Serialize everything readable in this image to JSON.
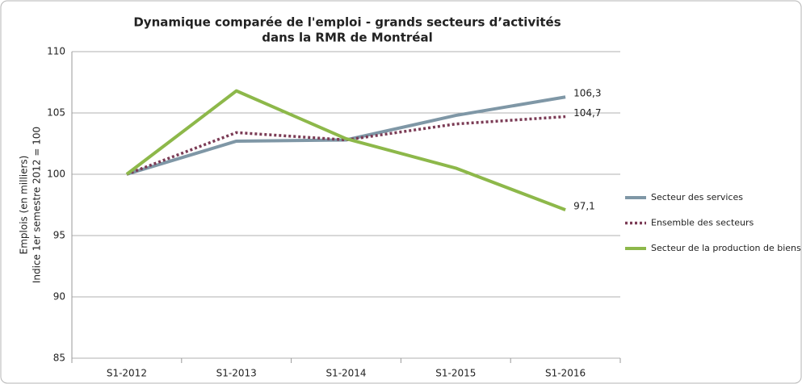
{
  "chart_data": {
    "type": "line",
    "title": [
      "Dynamique comparée de l'emploi - grands secteurs d’activités",
      "dans la RMR de Montréal"
    ],
    "y_label": [
      "Emplois (en milliers)",
      "Indice 1er semestre 2012 = 100"
    ],
    "categories": [
      "S1-2012",
      "S1-2013",
      "S1-2014",
      "S1-2015",
      "S1-2016"
    ],
    "series": [
      {
        "name": "Secteur des services",
        "color": "#7f97a6",
        "dashed": false,
        "values": [
          100,
          102.7,
          102.8,
          104.8,
          106.3
        ],
        "value_labels": [
          null,
          null,
          null,
          null,
          "106,3"
        ]
      },
      {
        "name": "Ensemble des secteurs",
        "color": "#7b3b55",
        "dashed": true,
        "values": [
          100,
          103.4,
          102.8,
          104.1,
          104.7
        ],
        "value_labels": [
          null,
          null,
          null,
          null,
          "104,7"
        ]
      },
      {
        "name": "Secteur de la production de biens",
        "color": "#8db84a",
        "dashed": false,
        "values": [
          100,
          106.8,
          102.9,
          100.5,
          97.1
        ],
        "value_labels": [
          null,
          null,
          null,
          null,
          "97,1"
        ]
      }
    ],
    "ylim": [
      85,
      110
    ],
    "yticks": [
      85,
      90,
      95,
      100,
      105,
      110
    ],
    "grid": true,
    "legend": "right"
  }
}
